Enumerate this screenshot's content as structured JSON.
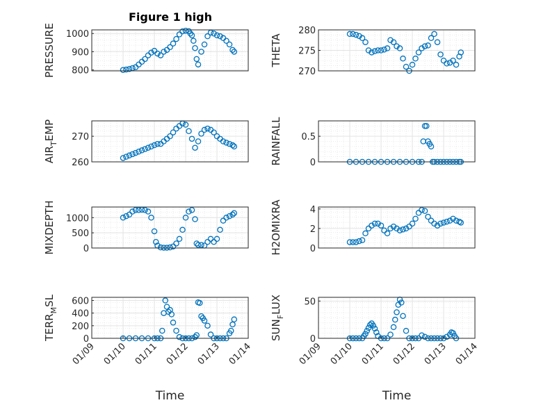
{
  "figure": {
    "title": "Figure 1 high"
  },
  "chart_data": [
    {
      "id": "pressure",
      "type": "scatter",
      "ylabel": "PRESSURE",
      "ylim": [
        795,
        1020
      ],
      "yticks": [
        800,
        900,
        1000
      ],
      "ytick_labels": [
        "800",
        "900",
        "1000"
      ],
      "xlim": [
        10.0,
        13.6
      ],
      "xticks": [],
      "xtick_labels": [],
      "grid": true,
      "x": [
        10.0,
        10.1,
        10.2,
        10.3,
        10.4,
        10.5,
        10.6,
        10.7,
        10.8,
        10.9,
        11.0,
        11.1,
        11.2,
        11.3,
        11.4,
        11.5,
        11.6,
        11.7,
        11.8,
        11.9,
        12.0,
        12.1,
        12.15,
        12.2,
        12.25,
        12.3,
        12.35,
        12.4,
        12.5,
        12.6,
        12.7,
        12.8,
        12.9,
        13.0,
        13.1,
        13.2,
        13.3,
        13.4,
        13.5,
        13.55
      ],
      "y": [
        800,
        802,
        805,
        810,
        815,
        830,
        845,
        860,
        880,
        895,
        905,
        890,
        880,
        900,
        910,
        925,
        945,
        970,
        995,
        1012,
        1015,
        1013,
        1000,
        990,
        960,
        920,
        860,
        830,
        900,
        940,
        985,
        1005,
        1000,
        990,
        985,
        975,
        960,
        940,
        910,
        900
      ]
    },
    {
      "id": "theta",
      "type": "scatter",
      "ylabel": "THETA",
      "ylim": [
        270,
        280
      ],
      "yticks": [
        270,
        275,
        280
      ],
      "ytick_labels": [
        "270",
        "275",
        "280"
      ],
      "xlim": [
        10.0,
        13.6
      ],
      "xticks": [],
      "xtick_labels": [],
      "grid": true,
      "x": [
        10.0,
        10.1,
        10.2,
        10.3,
        10.4,
        10.5,
        10.6,
        10.7,
        10.8,
        10.9,
        11.0,
        11.1,
        11.2,
        11.3,
        11.4,
        11.5,
        11.6,
        11.7,
        11.8,
        11.9,
        12.0,
        12.1,
        12.2,
        12.3,
        12.4,
        12.5,
        12.6,
        12.7,
        12.8,
        12.9,
        13.0,
        13.1,
        13.2,
        13.3,
        13.4,
        13.5,
        13.55
      ],
      "y": [
        279,
        279,
        278.8,
        278.5,
        278,
        277,
        275,
        274.5,
        274.8,
        275,
        275,
        275.2,
        275.5,
        277.5,
        277,
        276,
        275.5,
        273,
        271,
        270,
        271.5,
        273,
        274.5,
        275.5,
        276,
        276.2,
        278,
        279,
        277,
        274,
        272.5,
        271.8,
        272,
        272.5,
        271.5,
        273.5,
        274.5
      ]
    },
    {
      "id": "air_temp",
      "type": "scatter",
      "ylabel": "AIR_TEMP",
      "ylim": [
        260,
        276
      ],
      "yticks": [
        260,
        270
      ],
      "ytick_labels": [
        "260",
        "270"
      ],
      "xlim": [
        10.0,
        13.6
      ],
      "xticks": [],
      "xtick_labels": [],
      "grid": true,
      "x": [
        10.0,
        10.1,
        10.2,
        10.3,
        10.4,
        10.5,
        10.6,
        10.7,
        10.8,
        10.9,
        11.0,
        11.1,
        11.2,
        11.3,
        11.4,
        11.5,
        11.6,
        11.7,
        11.8,
        11.9,
        12.0,
        12.1,
        12.2,
        12.3,
        12.4,
        12.5,
        12.6,
        12.7,
        12.8,
        12.9,
        13.0,
        13.1,
        13.2,
        13.3,
        13.4,
        13.5,
        13.55
      ],
      "y": [
        261.5,
        262,
        262.5,
        263,
        263.5,
        264,
        264.5,
        265,
        265.5,
        266,
        266.5,
        267,
        267,
        268,
        269,
        270,
        271.5,
        273,
        274,
        275,
        274.5,
        272,
        269,
        265.5,
        268,
        271,
        272.5,
        273,
        272.5,
        271.5,
        270,
        269,
        268,
        267.5,
        267,
        266.5,
        266
      ]
    },
    {
      "id": "rainfall",
      "type": "scatter",
      "ylabel": "RAINFALL",
      "ylim": [
        0,
        0.8
      ],
      "yticks": [
        0,
        0.5
      ],
      "ytick_labels": [
        "0",
        "0.5"
      ],
      "xlim": [
        10.0,
        13.6
      ],
      "xticks": [],
      "xtick_labels": [],
      "grid": true,
      "x": [
        10.0,
        10.2,
        10.4,
        10.6,
        10.8,
        11.0,
        11.2,
        11.4,
        11.6,
        11.8,
        12.0,
        12.2,
        12.3,
        12.35,
        12.4,
        12.45,
        12.5,
        12.55,
        12.6,
        12.65,
        12.7,
        12.8,
        12.9,
        13.0,
        13.1,
        13.2,
        13.3,
        13.4,
        13.5,
        13.55
      ],
      "y": [
        0,
        0,
        0,
        0,
        0,
        0,
        0,
        0,
        0,
        0,
        0,
        0,
        0,
        0.4,
        0.7,
        0.7,
        0.4,
        0.35,
        0.3,
        0,
        0,
        0,
        0,
        0,
        0,
        0,
        0,
        0,
        0,
        0
      ]
    },
    {
      "id": "mixdepth",
      "type": "scatter",
      "ylabel": "MIXDEPTH",
      "ylim": [
        0,
        1350
      ],
      "yticks": [
        0,
        500,
        1000
      ],
      "ytick_labels": [
        "0",
        "500",
        "1000"
      ],
      "xlim": [
        10.0,
        13.6
      ],
      "xticks": [],
      "xtick_labels": [],
      "grid": true,
      "x": [
        10.0,
        10.1,
        10.2,
        10.3,
        10.4,
        10.5,
        10.6,
        10.7,
        10.8,
        10.9,
        11.0,
        11.05,
        11.1,
        11.2,
        11.3,
        11.4,
        11.5,
        11.6,
        11.7,
        11.8,
        11.9,
        12.0,
        12.1,
        12.2,
        12.3,
        12.35,
        12.4,
        12.5,
        12.6,
        12.7,
        12.8,
        12.9,
        13.0,
        13.1,
        13.2,
        13.3,
        13.4,
        13.5,
        13.55
      ],
      "y": [
        1000,
        1050,
        1100,
        1200,
        1250,
        1250,
        1260,
        1250,
        1200,
        1000,
        550,
        200,
        80,
        20,
        10,
        10,
        20,
        50,
        150,
        300,
        600,
        1000,
        1200,
        1250,
        950,
        150,
        100,
        100,
        80,
        200,
        300,
        200,
        300,
        600,
        900,
        1000,
        1050,
        1100,
        1150
      ]
    },
    {
      "id": "h2omixra",
      "type": "scatter",
      "ylabel": "H2OMIXRA",
      "ylim": [
        0,
        4.2
      ],
      "yticks": [
        0,
        2,
        4
      ],
      "ytick_labels": [
        "0",
        "2",
        "4"
      ],
      "xlim": [
        10.0,
        13.6
      ],
      "xticks": [],
      "xtick_labels": [],
      "grid": true,
      "x": [
        10.0,
        10.1,
        10.2,
        10.3,
        10.4,
        10.5,
        10.6,
        10.7,
        10.8,
        10.9,
        11.0,
        11.1,
        11.2,
        11.3,
        11.4,
        11.5,
        11.6,
        11.7,
        11.8,
        11.9,
        12.0,
        12.1,
        12.2,
        12.3,
        12.4,
        12.5,
        12.6,
        12.7,
        12.8,
        12.9,
        13.0,
        13.1,
        13.2,
        13.3,
        13.4,
        13.5,
        13.55
      ],
      "y": [
        0.6,
        0.6,
        0.6,
        0.7,
        0.8,
        1.5,
        2.0,
        2.3,
        2.5,
        2.5,
        2.3,
        1.8,
        1.5,
        2.0,
        2.2,
        2.0,
        1.8,
        1.9,
        2.0,
        2.2,
        2.5,
        3.0,
        3.6,
        3.9,
        3.8,
        3.2,
        2.8,
        2.5,
        2.3,
        2.5,
        2.6,
        2.7,
        2.8,
        3.0,
        2.8,
        2.7,
        2.6
      ]
    },
    {
      "id": "terr_msl",
      "type": "scatter",
      "ylabel": "TERR_MSL",
      "ylim": [
        0,
        650
      ],
      "yticks": [
        0,
        200,
        400,
        600
      ],
      "ytick_labels": [
        "0",
        "200",
        "400",
        "600"
      ],
      "xlim": [
        9.0,
        14.0
      ],
      "xticks": [
        9,
        10,
        11,
        12,
        13,
        14
      ],
      "xtick_labels": [
        "01/09",
        "01/10",
        "01/11",
        "01/12",
        "01/13",
        "01/14"
      ],
      "xlabel": "Time",
      "grid": true,
      "x": [
        10.0,
        10.2,
        10.4,
        10.6,
        10.8,
        11.0,
        11.1,
        11.2,
        11.25,
        11.3,
        11.35,
        11.4,
        11.45,
        11.5,
        11.55,
        11.6,
        11.7,
        11.8,
        11.9,
        12.0,
        12.1,
        12.2,
        12.3,
        12.35,
        12.4,
        12.45,
        12.5,
        12.55,
        12.6,
        12.7,
        12.8,
        12.9,
        13.0,
        13.1,
        13.2,
        13.3,
        13.4,
        13.45,
        13.5,
        13.55
      ],
      "y": [
        0,
        0,
        0,
        0,
        0,
        0,
        0,
        0,
        120,
        400,
        600,
        500,
        420,
        450,
        380,
        250,
        120,
        20,
        0,
        0,
        0,
        0,
        20,
        50,
        570,
        560,
        350,
        320,
        280,
        200,
        60,
        0,
        0,
        0,
        0,
        0,
        80,
        120,
        220,
        300
      ]
    },
    {
      "id": "sun_flux",
      "type": "scatter",
      "ylabel": "SUN_FLUX",
      "ylim": [
        0,
        55
      ],
      "yticks": [
        0,
        50
      ],
      "ytick_labels": [
        "0",
        "50"
      ],
      "xlim": [
        9.0,
        14.0
      ],
      "xticks": [
        9,
        10,
        11,
        12,
        13,
        14
      ],
      "xtick_labels": [
        "01/09",
        "01/10",
        "01/11",
        "01/12",
        "01/13",
        "01/14"
      ],
      "xlabel": "Time",
      "grid": true,
      "x": [
        10.0,
        10.1,
        10.2,
        10.3,
        10.4,
        10.45,
        10.5,
        10.55,
        10.6,
        10.65,
        10.7,
        10.75,
        10.8,
        10.85,
        10.9,
        11.0,
        11.1,
        11.2,
        11.3,
        11.4,
        11.45,
        11.5,
        11.55,
        11.6,
        11.65,
        11.7,
        11.8,
        11.9,
        12.0,
        12.1,
        12.2,
        12.3,
        12.4,
        12.5,
        12.6,
        12.7,
        12.8,
        12.9,
        13.0,
        13.1,
        13.2,
        13.25,
        13.3,
        13.35,
        13.4
      ],
      "y": [
        0,
        0,
        0,
        0,
        0,
        3,
        6,
        10,
        14,
        18,
        20,
        17,
        13,
        8,
        3,
        0,
        0,
        0,
        5,
        15,
        25,
        35,
        45,
        52,
        48,
        30,
        10,
        0,
        0,
        0,
        0,
        4,
        2,
        0,
        0,
        0,
        0,
        0,
        0,
        2,
        5,
        8,
        7,
        3,
        0
      ]
    }
  ]
}
